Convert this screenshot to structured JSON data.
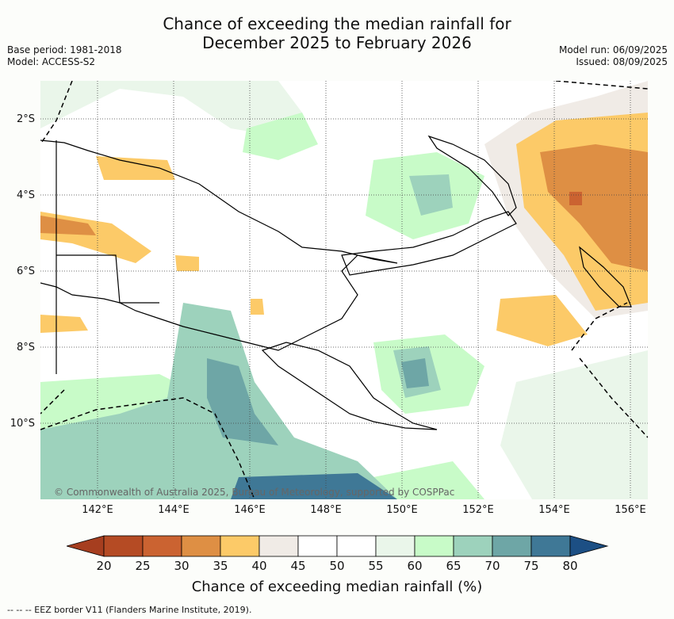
{
  "title_line1": "Chance of exceeding the median rainfall for",
  "title_line2": "December 2025 to February 2026",
  "meta_left": {
    "base_period": "Base period: 1981-2018",
    "model": "Model: ACCESS-S2"
  },
  "meta_right": {
    "model_run": "Model run: 06/09/2025",
    "issued": "Issued: 08/09/2025"
  },
  "lat_labels": [
    "2°S",
    "4°S",
    "6°S",
    "8°S",
    "10°S"
  ],
  "lon_labels": [
    "142°E",
    "144°E",
    "146°E",
    "148°E",
    "150°E",
    "152°E",
    "154°E",
    "156°E"
  ],
  "credit": "© Commonwealth of Australia 2025, Bureau of Meteorology, supported by COSPPac",
  "colorbar": {
    "title": "Chance of exceeding median rainfall (%)",
    "ticks": [
      "20",
      "25",
      "30",
      "35",
      "40",
      "45",
      "50",
      "55",
      "60",
      "65",
      "70",
      "75",
      "80"
    ],
    "colors": [
      "#a63e1f",
      "#b54b24",
      "#cb6331",
      "#de8f44",
      "#fcca68",
      "#f0ebe6",
      "#ffffff",
      "#ffffff",
      "#eaf6ea",
      "#c8fbc8",
      "#9dd2bc",
      "#6ea6a6",
      "#3f7896",
      "#1c4f84"
    ]
  },
  "legend_footer": "-- -- -- EEZ border V11 (Flanders Marine Institute, 2019).",
  "palette": {
    "background": "#fcfdfa",
    "coast": "#000000"
  }
}
